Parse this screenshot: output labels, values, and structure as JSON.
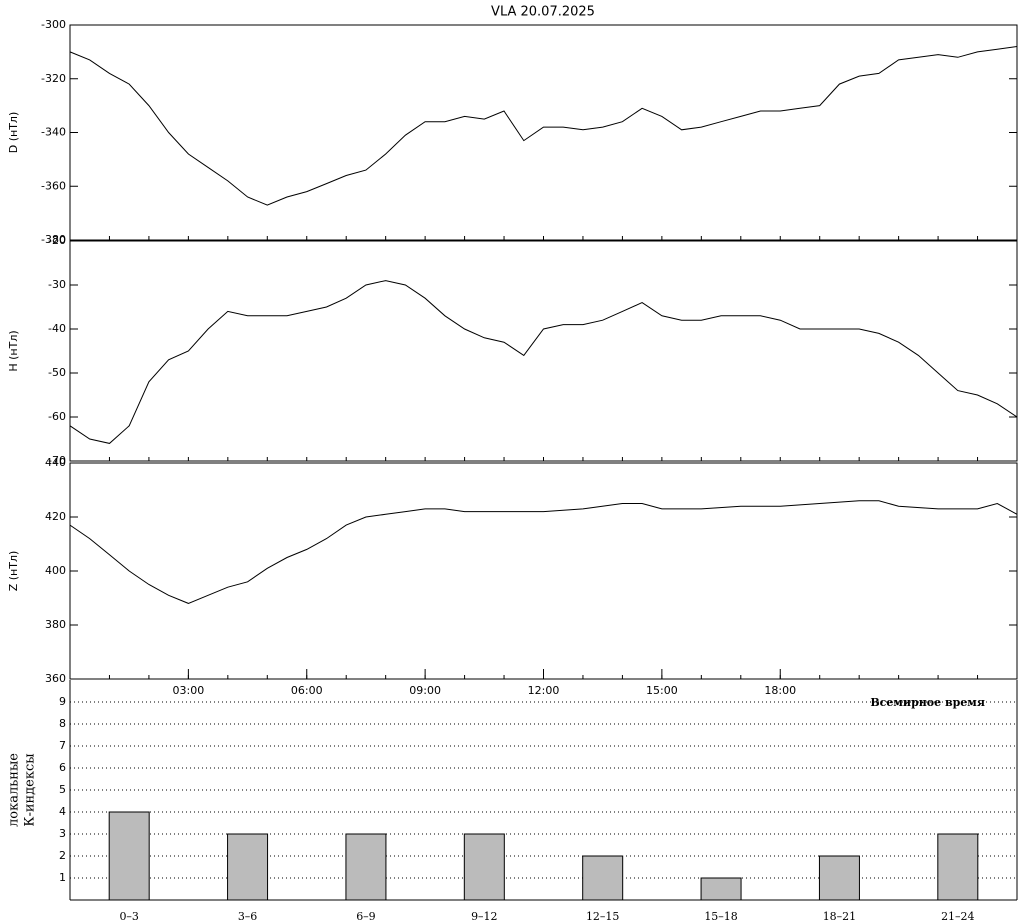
{
  "title": "VLA   20.07.2025",
  "chart_data": [
    {
      "type": "line",
      "ylabel": "D (нТл)",
      "color": "#000000",
      "x": [
        0,
        0.5,
        1,
        1.5,
        2,
        2.5,
        3,
        3.5,
        4,
        4.5,
        5,
        5.5,
        6,
        6.5,
        7,
        7.5,
        8,
        8.5,
        9,
        9.5,
        10,
        10.5,
        11,
        11.5,
        12,
        12.5,
        13,
        13.5,
        14,
        14.5,
        15,
        15.5,
        16,
        16.5,
        17,
        17.5,
        18,
        18.5,
        19,
        19.5,
        20,
        20.5,
        21,
        21.5,
        22,
        22.5,
        23,
        23.5,
        24
      ],
      "values": [
        -310,
        -313,
        -318,
        -322,
        -330,
        -340,
        -348,
        -353,
        -358,
        -364,
        -367,
        -364,
        -362,
        -359,
        -356,
        -354,
        -348,
        -341,
        -336,
        -336,
        -334,
        -335,
        -332,
        -343,
        -338,
        -338,
        -339,
        -338,
        -336,
        -331,
        -334,
        -339,
        -338,
        -336,
        -334,
        -332,
        -332,
        -331,
        -330,
        -322,
        -319,
        -318,
        -313,
        -312,
        -311,
        -312,
        -310,
        -309,
        -308
      ],
      "xlim": [
        0,
        24
      ],
      "ylim": [
        -300,
        -380
      ],
      "yticks": [
        -300,
        -320,
        -340,
        -360,
        -380
      ]
    },
    {
      "type": "line",
      "ylabel": "H (нТл)",
      "color": "#000000",
      "x": [
        0,
        0.5,
        1,
        1.5,
        2,
        2.5,
        3,
        3.5,
        4,
        4.5,
        5,
        5.5,
        6,
        6.5,
        7,
        7.5,
        8,
        8.5,
        9,
        9.5,
        10,
        10.5,
        11,
        11.5,
        12,
        12.5,
        13,
        13.5,
        14,
        14.5,
        15,
        15.5,
        16,
        16.5,
        17,
        17.5,
        18,
        18.5,
        19,
        19.5,
        20,
        20.5,
        21,
        21.5,
        22,
        22.5,
        23,
        23.5,
        24
      ],
      "values": [
        -62,
        -65,
        -66,
        -62,
        -52,
        -47,
        -45,
        -40,
        -36,
        -37,
        -37,
        -37,
        -36,
        -35,
        -33,
        -30,
        -29,
        -30,
        -33,
        -37,
        -40,
        -42,
        -43,
        -46,
        -40,
        -39,
        -39,
        -38,
        -36,
        -34,
        -37,
        -38,
        -38,
        -37,
        -37,
        -37,
        -38,
        -40,
        -40,
        -40,
        -40,
        -41,
        -43,
        -46,
        -50,
        -54,
        -55,
        -57,
        -60
      ],
      "xlim": [
        0,
        24
      ],
      "ylim": [
        -20,
        -70
      ],
      "yticks": [
        -20,
        -30,
        -40,
        -50,
        -60,
        -70
      ]
    },
    {
      "type": "line",
      "ylabel": "Z (нТл)",
      "xlabel": "Всемирное время",
      "color": "#000000",
      "x": [
        0,
        0.5,
        1,
        1.5,
        2,
        2.5,
        3,
        3.5,
        4,
        4.5,
        5,
        5.5,
        6,
        6.5,
        7,
        7.5,
        8,
        8.5,
        9,
        9.5,
        10,
        10.5,
        11,
        12,
        13,
        14,
        14.5,
        15,
        16,
        17,
        18,
        19,
        20,
        20.5,
        21,
        22,
        23,
        23.5,
        24
      ],
      "values": [
        417,
        412,
        406,
        400,
        395,
        391,
        388,
        391,
        394,
        396,
        401,
        405,
        408,
        412,
        417,
        420,
        421,
        422,
        423,
        423,
        422,
        422,
        422,
        422,
        423,
        425,
        425,
        423,
        423,
        424,
        424,
        425,
        426,
        426,
        424,
        423,
        423,
        425,
        421
      ],
      "xlim": [
        0,
        24
      ],
      "ylim": [
        440,
        360
      ],
      "yticks": [
        360,
        380,
        400,
        420,
        440
      ],
      "xticks": [
        {
          "value": 3,
          "label": "03:00"
        },
        {
          "value": 6,
          "label": "06:00"
        },
        {
          "value": 9,
          "label": "09:00"
        },
        {
          "value": 12,
          "label": "12:00"
        },
        {
          "value": 15,
          "label": "15:00"
        },
        {
          "value": 18,
          "label": "18:00"
        }
      ]
    },
    {
      "type": "bar",
      "ylabel": [
        "локальные",
        "К-индексы"
      ],
      "color": "#bbbbbb",
      "categories": [
        "0–3",
        "3–6",
        "6–9",
        "9–12",
        "12–15",
        "15–18",
        "18–21",
        "21–24"
      ],
      "values": [
        4,
        3,
        3,
        3,
        2,
        1,
        2,
        3
      ],
      "ylim": [
        0,
        10
      ],
      "yticks": [
        1,
        2,
        3,
        4,
        5,
        6,
        7,
        8,
        9
      ],
      "grid": true
    }
  ]
}
